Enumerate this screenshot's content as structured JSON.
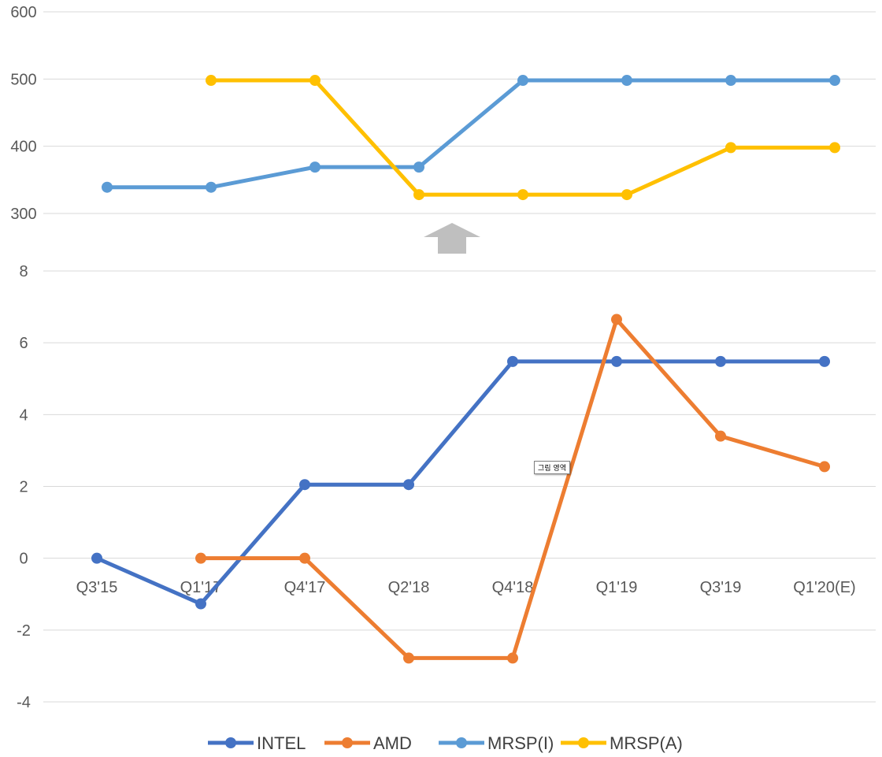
{
  "chart_data": [
    {
      "type": "line",
      "panel": "upper",
      "ylim": [
        300,
        600
      ],
      "yticks": [
        "600",
        "500",
        "400",
        "300"
      ],
      "series": [
        {
          "name": "MRSP(I)",
          "color": "#5B9BD5",
          "points": [
            [
              0,
              339
            ],
            [
              1,
              339
            ],
            [
              2,
              369
            ],
            [
              3,
              369
            ],
            [
              4,
              498
            ],
            [
              5,
              498
            ],
            [
              6,
              498
            ],
            [
              7,
              498
            ]
          ]
        },
        {
          "name": "MRSP(A)",
          "color": "#FFC000",
          "points": [
            [
              1,
              498
            ],
            [
              2,
              498
            ],
            [
              3,
              328
            ],
            [
              4,
              328
            ],
            [
              5,
              328
            ],
            [
              6,
              398
            ],
            [
              7,
              398
            ]
          ]
        }
      ]
    },
    {
      "type": "line",
      "panel": "lower",
      "categories": [
        "Q3'15",
        "Q1'17",
        "Q4'17",
        "Q2'18",
        "Q4'18",
        "Q1'19",
        "Q3'19",
        "Q1'20(E)"
      ],
      "ylim": [
        -4,
        8
      ],
      "yticks": [
        "8",
        "6",
        "4",
        "2",
        "0",
        "-2",
        "-4"
      ],
      "series": [
        {
          "name": "INTEL",
          "color": "#4472C4",
          "points": [
            [
              0,
              0
            ],
            [
              1,
              -1.27
            ],
            [
              2,
              2.05
            ],
            [
              3,
              2.05
            ],
            [
              4,
              5.48
            ],
            [
              5,
              5.48
            ],
            [
              6,
              5.48
            ],
            [
              7,
              5.48
            ]
          ]
        },
        {
          "name": "AMD",
          "color": "#ED7D31",
          "points": [
            [
              1,
              0
            ],
            [
              2,
              0
            ],
            [
              3,
              -2.78
            ],
            [
              4,
              -2.78
            ],
            [
              5,
              6.65
            ],
            [
              6,
              3.4
            ],
            [
              7,
              2.55
            ]
          ]
        }
      ]
    }
  ],
  "legend": [
    {
      "label": "INTEL",
      "color": "#4472C4"
    },
    {
      "label": "AMD",
      "color": "#ED7D31"
    },
    {
      "label": "MRSP(I)",
      "color": "#5B9BD5"
    },
    {
      "label": "MRSP(A)",
      "color": "#FFC000"
    }
  ],
  "arrow_color": "#BFBFBF",
  "tooltip": {
    "text": "그림 영역"
  }
}
